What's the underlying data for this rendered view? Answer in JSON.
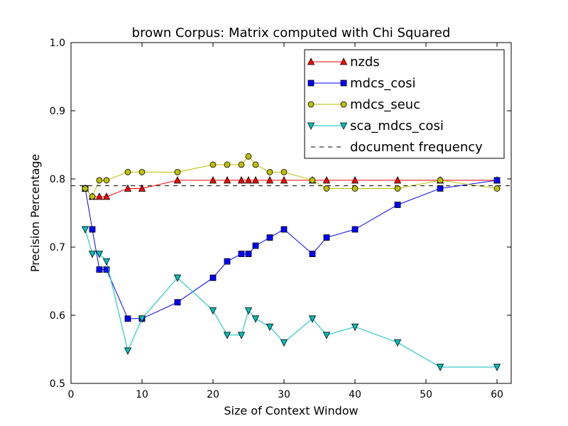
{
  "chart_data": {
    "type": "line",
    "title": "brown Corpus: Matrix computed with Chi Squared",
    "xlabel": "Size of Context Window",
    "ylabel": "Precision Percentage",
    "xlim": [
      0,
      62
    ],
    "ylim": [
      0.5,
      1.0
    ],
    "xticks": [
      0,
      10,
      20,
      30,
      40,
      50,
      60
    ],
    "yticks": [
      0.5,
      0.6,
      0.7,
      0.8,
      0.9,
      1.0
    ],
    "xtick_labels": [
      "0",
      "10",
      "20",
      "30",
      "40",
      "50",
      "60"
    ],
    "ytick_labels": [
      "0.5",
      "0.6",
      "0.7",
      "0.8",
      "0.9",
      "1.0"
    ],
    "grid": false,
    "legend_position": "top-right",
    "series": [
      {
        "name": "nzds",
        "color": "#ff0000",
        "marker": "triangle-up",
        "x": [
          2,
          3,
          4,
          5,
          8,
          10,
          15,
          20,
          22,
          24,
          25,
          26,
          28,
          30,
          34,
          36,
          40,
          46,
          52,
          60
        ],
        "y": [
          0.786,
          0.774,
          0.774,
          0.774,
          0.786,
          0.786,
          0.798,
          0.798,
          0.798,
          0.798,
          0.798,
          0.798,
          0.798,
          0.798,
          0.798,
          0.798,
          0.798,
          0.798,
          0.798,
          0.798
        ]
      },
      {
        "name": "mdcs_cosi",
        "color": "#0000ff",
        "marker": "square",
        "x": [
          2,
          3,
          4,
          5,
          8,
          10,
          15,
          20,
          22,
          24,
          25,
          26,
          28,
          30,
          34,
          36,
          40,
          46,
          52,
          60
        ],
        "y": [
          0.786,
          0.726,
          0.667,
          0.667,
          0.595,
          0.595,
          0.619,
          0.655,
          0.679,
          0.69,
          0.69,
          0.702,
          0.714,
          0.726,
          0.69,
          0.714,
          0.726,
          0.762,
          0.786,
          0.798
        ]
      },
      {
        "name": "mdcs_seuc",
        "color": "#bfbf00",
        "marker": "circle",
        "x": [
          2,
          3,
          4,
          5,
          8,
          10,
          15,
          20,
          22,
          24,
          25,
          26,
          28,
          30,
          34,
          36,
          40,
          46,
          52,
          60
        ],
        "y": [
          0.786,
          0.774,
          0.798,
          0.798,
          0.81,
          0.81,
          0.81,
          0.821,
          0.821,
          0.821,
          0.833,
          0.821,
          0.81,
          0.81,
          0.798,
          0.786,
          0.786,
          0.786,
          0.798,
          0.786
        ]
      },
      {
        "name": "sca_mdcs_cosi",
        "color": "#00bfbf",
        "marker": "triangle-down",
        "x": [
          2,
          3,
          4,
          5,
          8,
          10,
          15,
          20,
          22,
          24,
          25,
          26,
          28,
          30,
          34,
          36,
          40,
          46,
          52,
          60
        ],
        "y": [
          0.726,
          0.69,
          0.69,
          0.679,
          0.548,
          0.595,
          0.655,
          0.607,
          0.571,
          0.571,
          0.607,
          0.595,
          0.583,
          0.56,
          0.595,
          0.571,
          0.583,
          0.56,
          0.524,
          0.524
        ]
      },
      {
        "name": "document frequency",
        "color": "#000000",
        "style": "dashed",
        "x": [
          0,
          62
        ],
        "y": [
          0.79,
          0.79
        ]
      }
    ]
  }
}
